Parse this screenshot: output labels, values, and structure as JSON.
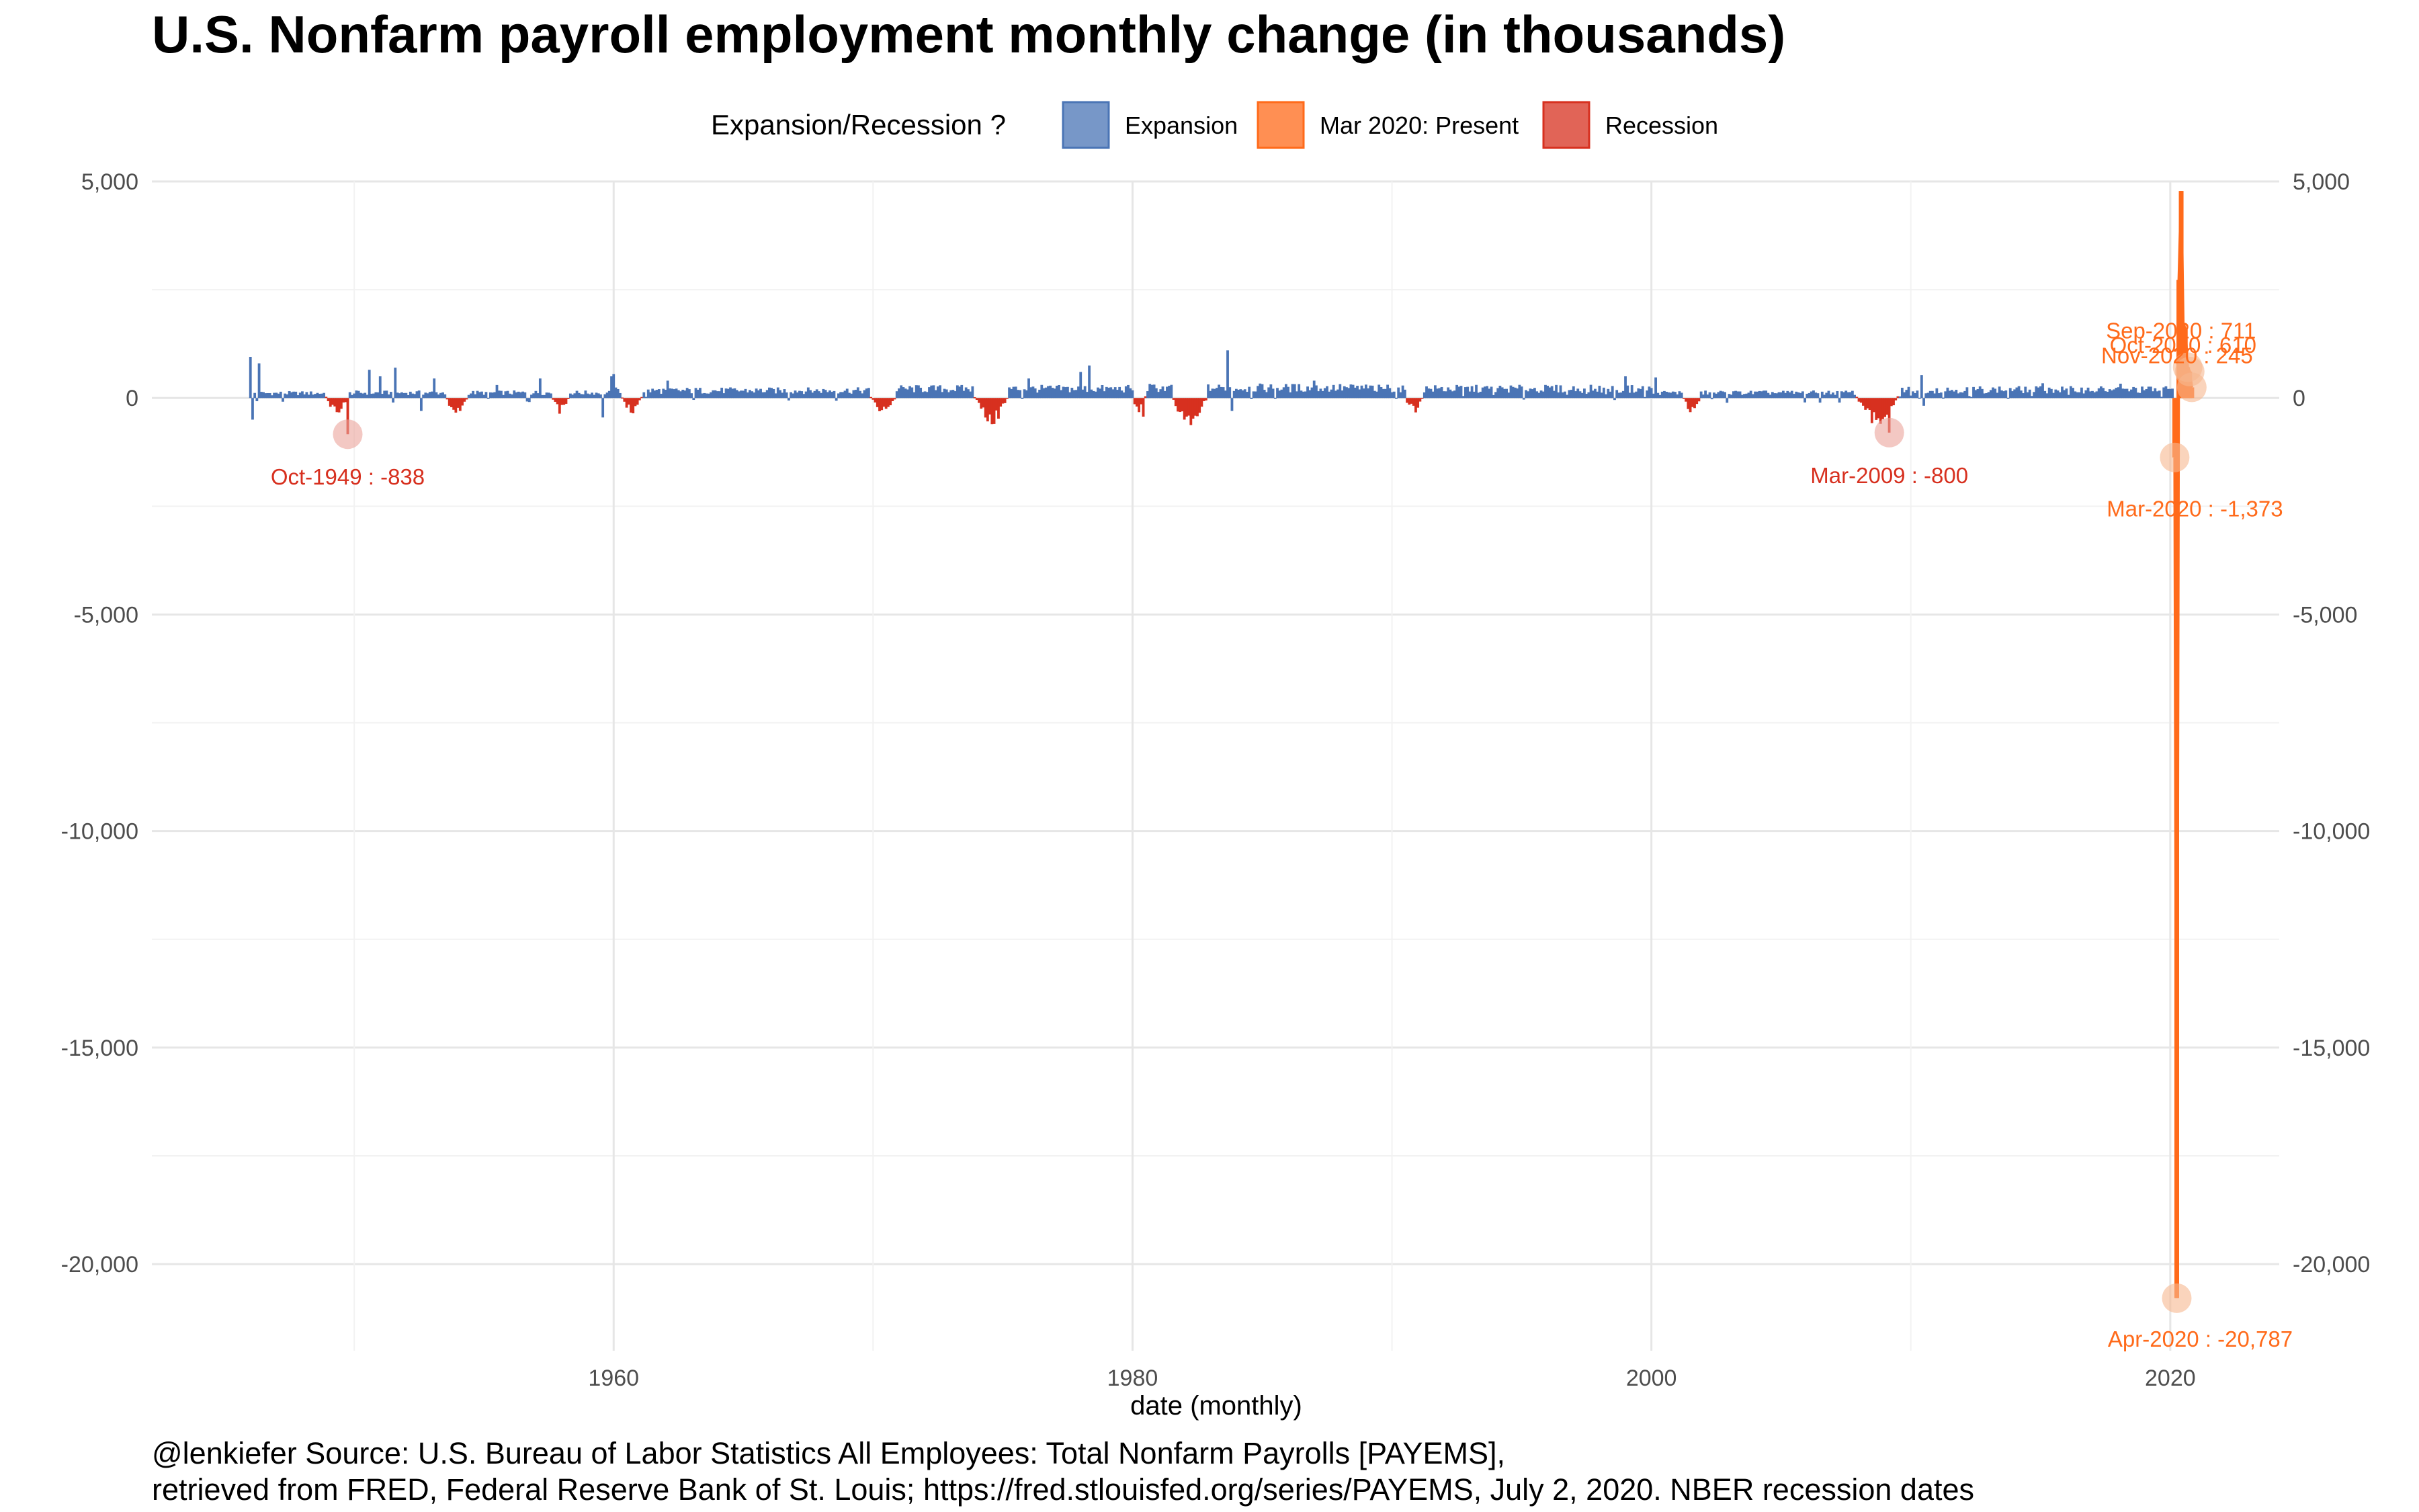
{
  "chart_data": {
    "type": "bar",
    "title": "U.S. Nonfarm payroll employment monthly change (in thousands)",
    "xlabel": "date (monthly)",
    "ylabel": "",
    "xlim": [
      1942.2,
      2024.2
    ],
    "ylim": [
      -22000,
      5000
    ],
    "x_ticks": [
      1960,
      1980,
      2000,
      2020
    ],
    "y_ticks": [
      5000,
      0,
      -5000,
      -10000,
      -15000,
      -20000
    ],
    "y_tick_labels": [
      "5,000",
      "0",
      "-5,000",
      "-10,000",
      "-15,000",
      "-20,000"
    ],
    "grid": true,
    "secondary_y_axis": true,
    "legend": {
      "title": "Expansion/Recession ?",
      "position": "top",
      "entries": [
        {
          "name": "Expansion",
          "color": "#4a74b5"
        },
        {
          "name": "Mar 2020: Present",
          "color": "#ff6a1a"
        },
        {
          "name": "Recession",
          "color": "#d7301f"
        }
      ]
    },
    "colors": {
      "expansion": "#4a74b5",
      "present": "#ff6a1a",
      "recession": "#d7301f"
    },
    "recessions": [
      [
        1948.9,
        1949.8
      ],
      [
        1953.5,
        1954.4
      ],
      [
        1957.6,
        1958.3
      ],
      [
        1960.3,
        1961.1
      ],
      [
        1969.9,
        1970.9
      ],
      [
        1973.9,
        1975.2
      ],
      [
        1980.0,
        1980.5
      ],
      [
        1981.5,
        1982.9
      ],
      [
        1990.5,
        1991.2
      ],
      [
        2001.2,
        2001.9
      ],
      [
        2007.9,
        2009.5
      ]
    ],
    "notable_values": [
      {
        "x": 1946.0,
        "y": 950
      },
      {
        "x": 1946.1,
        "y": -500
      },
      {
        "x": 1946.3,
        "y": 800
      },
      {
        "x": 1950.6,
        "y": 650
      },
      {
        "x": 1951.0,
        "y": 500
      },
      {
        "x": 1951.6,
        "y": 700
      },
      {
        "x": 1952.6,
        "y": -300
      },
      {
        "x": 1953.1,
        "y": 450
      },
      {
        "x": 1955.5,
        "y": 300
      },
      {
        "x": 1957.2,
        "y": 450
      },
      {
        "x": 1959.6,
        "y": -450
      },
      {
        "x": 1959.9,
        "y": 500
      },
      {
        "x": 1960.0,
        "y": 550
      },
      {
        "x": 1962.1,
        "y": 400
      },
      {
        "x": 1970.5,
        "y": -250
      },
      {
        "x": 1974.7,
        "y": -600
      },
      {
        "x": 1976.0,
        "y": 450
      },
      {
        "x": 1978.0,
        "y": 600
      },
      {
        "x": 1978.3,
        "y": 750
      },
      {
        "x": 1980.4,
        "y": -431
      },
      {
        "x": 1983.5,
        "y": 250
      },
      {
        "x": 1983.7,
        "y": 1100
      },
      {
        "x": 1983.8,
        "y": -300
      },
      {
        "x": 1987.0,
        "y": 400
      },
      {
        "x": 1999.0,
        "y": 500
      },
      {
        "x": 2000.2,
        "y": 475
      },
      {
        "x": 2010.4,
        "y": 529
      },
      {
        "x": 2010.5,
        "y": -180
      },
      {
        "x": 2015.1,
        "y": 340
      },
      {
        "x": 2018.1,
        "y": 330
      }
    ],
    "series": [
      {
        "name": "Mar 2020: Present",
        "points": [
          {
            "date": "Mar-2020",
            "x": 2020.17,
            "y": -1373
          },
          {
            "date": "Apr-2020",
            "x": 2020.25,
            "y": -20787
          },
          {
            "date": "May-2020",
            "x": 2020.33,
            "y": 2725
          },
          {
            "date": "Jun-2020",
            "x": 2020.42,
            "y": 4781
          },
          {
            "date": "Jul-2020",
            "x": 2020.5,
            "y": 1726
          },
          {
            "date": "Aug-2020",
            "x": 2020.58,
            "y": 1583
          },
          {
            "date": "Sep-2020",
            "x": 2020.67,
            "y": 711
          },
          {
            "date": "Oct-2020",
            "x": 2020.75,
            "y": 610
          },
          {
            "date": "Nov-2020",
            "x": 2020.83,
            "y": 245
          }
        ]
      }
    ],
    "annotations": [
      {
        "text": "Oct-1949 : -838",
        "x": 1949.75,
        "y": -838,
        "series": "recession"
      },
      {
        "text": "Mar-2009 : -800",
        "x": 2009.17,
        "y": -800,
        "series": "recession"
      },
      {
        "text": "Mar-2020 : -1,373",
        "x": 2020.17,
        "y": -1373,
        "series": "present"
      },
      {
        "text": "Apr-2020 : -20,787",
        "x": 2020.25,
        "y": -20787,
        "series": "present"
      },
      {
        "text": "Sep-2020 : 711",
        "x": 2020.67,
        "y": 711,
        "series": "present"
      },
      {
        "text": "Oct-2020 : 610",
        "x": 2020.75,
        "y": 610,
        "series": "present"
      },
      {
        "text": "Nov-2020 : 245",
        "x": 2020.83,
        "y": 245,
        "series": "present"
      }
    ]
  },
  "caption": {
    "line1": "@lenkiefer Source: U.S. Bureau of Labor Statistics All Employees: Total Nonfarm Payrolls [PAYEMS],",
    "line2": "retrieved from FRED, Federal Reserve Bank of St. Louis; https://fred.stlouisfed.org/series/PAYEMS, July 2, 2020. NBER recession dates"
  }
}
